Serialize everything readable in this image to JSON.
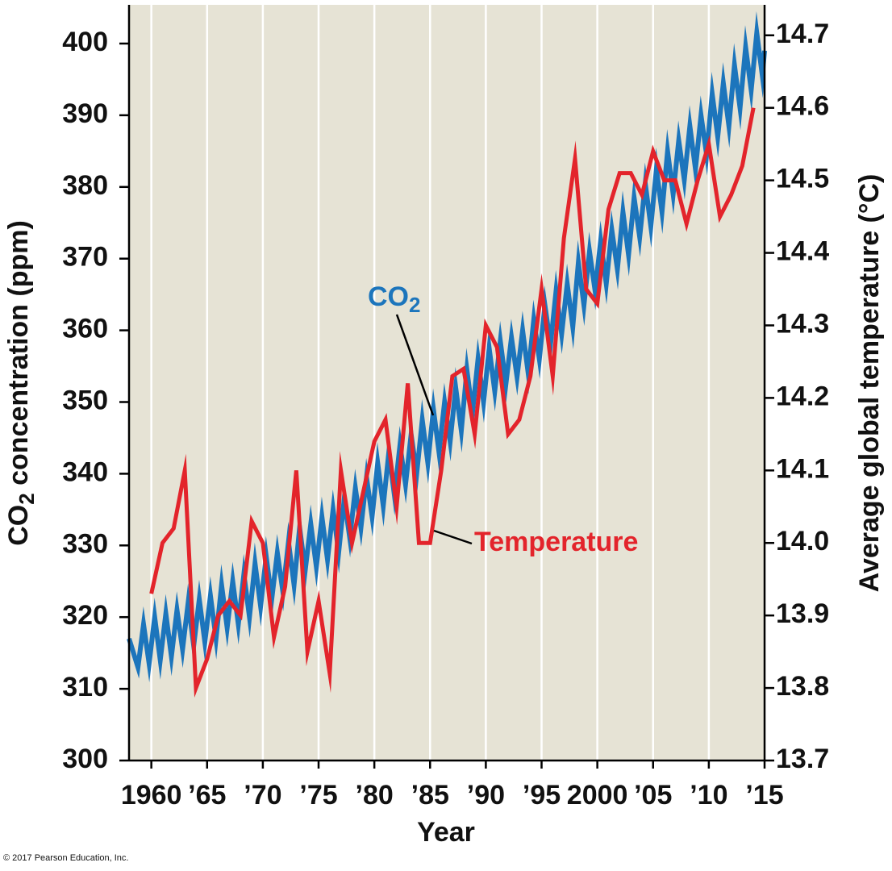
{
  "chart_data": {
    "type": "line",
    "x_label": "Year",
    "y_label": [
      "CO",
      "2",
      " concentration (ppm)"
    ],
    "y2_label": "Average global temperature (°C)",
    "credit": "© 2017 Pearson Education, Inc.",
    "annotations": [
      {
        "text": "CO",
        "subscript": "2"
      },
      {
        "text": "Temperature"
      }
    ],
    "background": "#e6e3d5",
    "grid": true,
    "xlim": [
      1958,
      2015
    ],
    "xticks": [
      1960,
      {
        "value": 1965,
        "label": "’65"
      },
      {
        "value": 1970,
        "label": "’70"
      },
      {
        "value": 1975,
        "label": "’75"
      },
      {
        "value": 1980,
        "label": "’80"
      },
      {
        "value": 1985,
        "label": "’85"
      },
      {
        "value": 1990,
        "label": "’90"
      },
      {
        "value": 1995,
        "label": "’95"
      },
      2000,
      {
        "value": 2005,
        "label": "’05"
      },
      {
        "value": 2010,
        "label": "’10"
      },
      {
        "value": 2015,
        "label": "’15"
      }
    ],
    "ylim": [
      300,
      405.4
    ],
    "yticks": [
      300,
      310,
      320,
      330,
      340,
      350,
      360,
      370,
      380,
      390,
      400
    ],
    "y2lim": [
      13.7,
      14.742
    ],
    "y2ticks": [
      13.7,
      13.8,
      13.9,
      {
        "value": 14,
        "label": "14.0"
      },
      14.1,
      14.2,
      14.3,
      14.4,
      14.5,
      14.6,
      14.7
    ],
    "series": [
      {
        "name": "CO2",
        "color": "#1c75bc",
        "axis": "y",
        "x": [
          1958.0,
          1958.8,
          1959.3,
          1959.8,
          1960.3,
          1960.8,
          1961.3,
          1961.8,
          1962.3,
          1962.8,
          1963.3,
          1963.8,
          1964.3,
          1964.8,
          1965.3,
          1965.8,
          1966.3,
          1966.8,
          1967.3,
          1967.8,
          1968.3,
          1968.8,
          1969.3,
          1969.8,
          1970.3,
          1970.8,
          1971.3,
          1971.8,
          1972.3,
          1972.8,
          1973.3,
          1973.8,
          1974.3,
          1974.8,
          1975.3,
          1975.8,
          1976.3,
          1976.8,
          1977.3,
          1977.8,
          1978.3,
          1978.8,
          1979.3,
          1979.8,
          1980.3,
          1980.8,
          1981.3,
          1981.8,
          1982.3,
          1982.8,
          1983.3,
          1983.8,
          1984.3,
          1984.8,
          1985.3,
          1985.8,
          1986.3,
          1986.8,
          1987.3,
          1987.8,
          1988.3,
          1988.8,
          1989.3,
          1989.8,
          1990.3,
          1990.8,
          1991.3,
          1991.8,
          1992.3,
          1992.8,
          1993.3,
          1993.8,
          1994.3,
          1994.8,
          1995.3,
          1995.8,
          1996.3,
          1996.8,
          1997.3,
          1997.8,
          1998.3,
          1998.8,
          1999.3,
          1999.8,
          2000.3,
          2000.8,
          2001.3,
          2001.8,
          2002.3,
          2002.8,
          2003.3,
          2003.8,
          2004.3,
          2004.8,
          2005.3,
          2005.8,
          2006.3,
          2006.8,
          2007.3,
          2007.8,
          2008.3,
          2008.8,
          2009.3,
          2009.8,
          2010.3,
          2010.8,
          2011.3,
          2011.8,
          2012.3,
          2012.8,
          2013.3,
          2013.8,
          2014.3,
          2014.8,
          2015.0
        ],
        "values": [
          317,
          313,
          319,
          313.5,
          320,
          314,
          320.5,
          314.5,
          321,
          315.5,
          322,
          316,
          322.5,
          316.5,
          323,
          317,
          324.5,
          318.5,
          325,
          319,
          326,
          320,
          327.5,
          321.5,
          328.5,
          322.5,
          329,
          323.5,
          330.5,
          324.5,
          332.5,
          326.5,
          333,
          327,
          334,
          328,
          335,
          329,
          336.5,
          331,
          338,
          332.5,
          339.5,
          334,
          341.5,
          335.5,
          343,
          337,
          344,
          338.5,
          345.5,
          340,
          347.5,
          341.5,
          349,
          343,
          350,
          344.5,
          352,
          346,
          354.5,
          348.5,
          356,
          350,
          357.5,
          351.5,
          358.5,
          352.5,
          359,
          353.5,
          360,
          354,
          361.5,
          356,
          363.5,
          358,
          365.5,
          359.5,
          366.5,
          360.5,
          369.5,
          363.5,
          371,
          365.5,
          372.5,
          366.5,
          374,
          368.5,
          376.5,
          370.5,
          378.5,
          373,
          380.5,
          374.5,
          382.5,
          376.5,
          385,
          379,
          386.5,
          381,
          388.5,
          382.5,
          390,
          384.5,
          393,
          387,
          394.5,
          388.5,
          397,
          391,
          399.5,
          393.5,
          401.5,
          395.5,
          399
        ]
      },
      {
        "name": "Temperature",
        "color": "#e3242b",
        "axis": "y2",
        "x": [
          1960,
          1961,
          1962,
          1963,
          1964,
          1965,
          1966,
          1967,
          1968,
          1969,
          1970,
          1971,
          1972,
          1973,
          1974,
          1975,
          1976,
          1977,
          1978,
          1979,
          1980,
          1981,
          1982,
          1983,
          1984,
          1985,
          1986,
          1987,
          1988,
          1989,
          1990,
          1991,
          1992,
          1993,
          1994,
          1995,
          1996,
          1997,
          1998,
          1999,
          2000,
          2001,
          2002,
          2003,
          2004,
          2005,
          2006,
          2007,
          2008,
          2009,
          2010,
          2011,
          2012,
          2013,
          2014
        ],
        "values": [
          13.93,
          14.0,
          14.02,
          14.1,
          13.8,
          13.84,
          13.9,
          13.92,
          13.9,
          14.03,
          14.0,
          13.87,
          13.94,
          14.1,
          13.85,
          13.92,
          13.82,
          14.1,
          14.0,
          14.07,
          14.14,
          14.17,
          14.05,
          14.22,
          14.0,
          14.0,
          14.1,
          14.23,
          14.24,
          14.15,
          14.3,
          14.27,
          14.15,
          14.17,
          14.23,
          14.35,
          14.23,
          14.42,
          14.53,
          14.35,
          14.33,
          14.46,
          14.51,
          14.51,
          14.48,
          14.54,
          14.5,
          14.5,
          14.44,
          14.5,
          14.55,
          14.45,
          14.48,
          14.52,
          14.6
        ]
      }
    ]
  }
}
